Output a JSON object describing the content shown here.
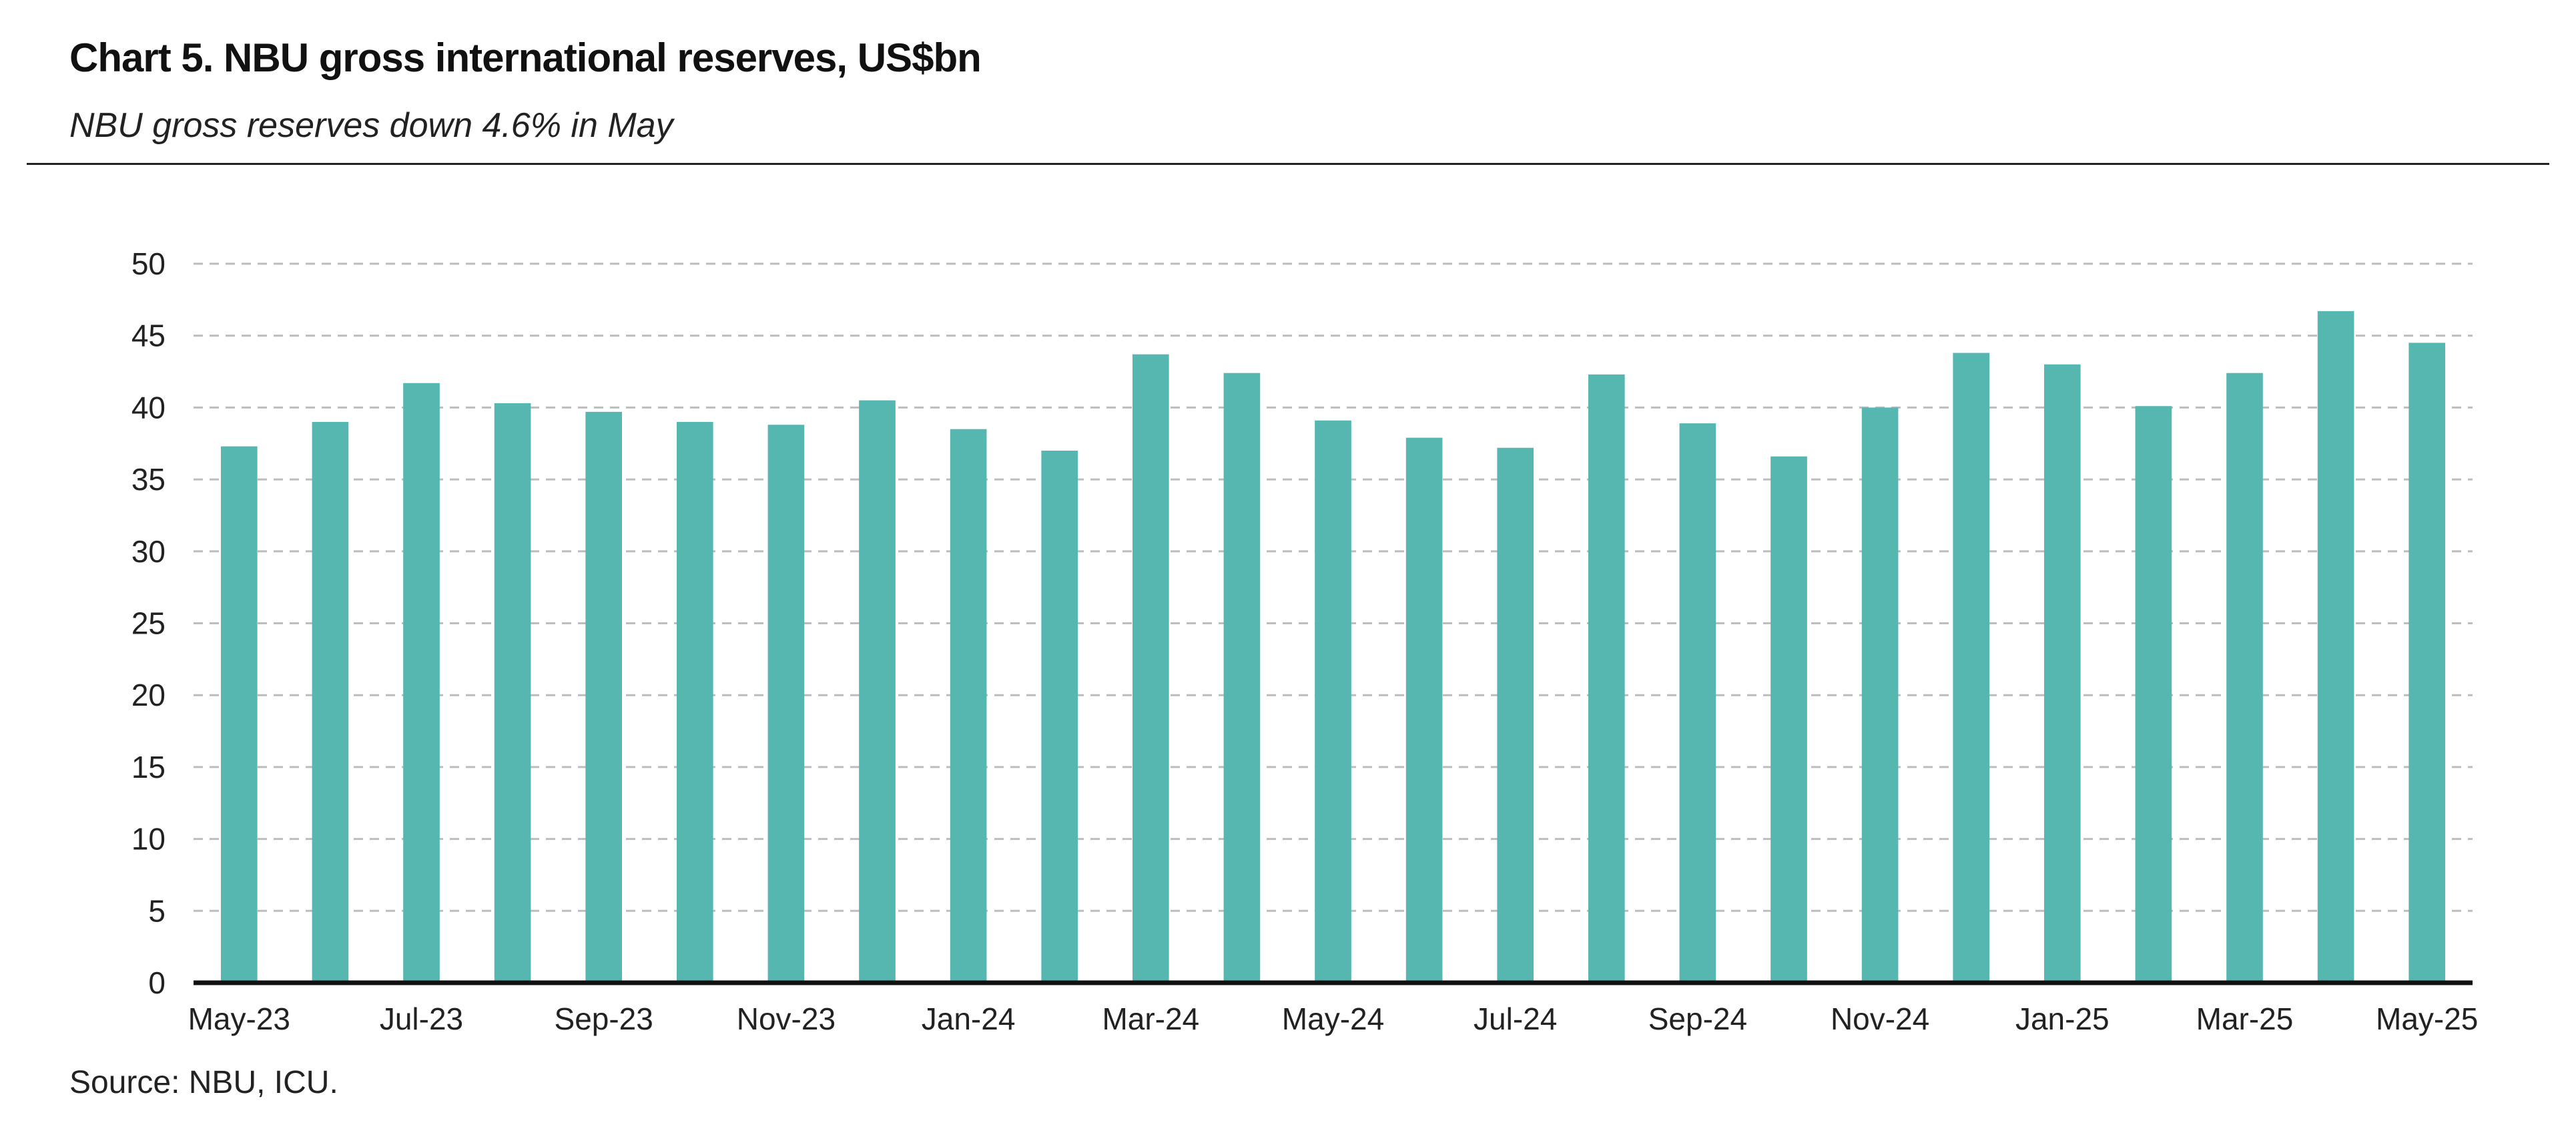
{
  "chart_data": {
    "type": "bar",
    "title": "Chart 5. NBU gross international reserves, US$bn",
    "subtitle": "NBU gross reserves down 4.6% in May",
    "source": "Source: NBU, ICU.",
    "xlabel": "",
    "ylabel": "",
    "ylim": [
      0,
      50
    ],
    "yticks": [
      0,
      5,
      10,
      15,
      20,
      25,
      30,
      35,
      40,
      45,
      50
    ],
    "grid": true,
    "legend": "none",
    "bar_color": "#56b6b0",
    "categories": [
      "May-23",
      "Jun-23",
      "Jul-23",
      "Aug-23",
      "Sep-23",
      "Oct-23",
      "Nov-23",
      "Dec-23",
      "Jan-24",
      "Feb-24",
      "Mar-24",
      "Apr-24",
      "May-24",
      "Jun-24",
      "Jul-24",
      "Aug-24",
      "Sep-24",
      "Oct-24",
      "Nov-24",
      "Dec-24",
      "Jan-25",
      "Feb-25",
      "Mar-25",
      "Apr-25",
      "May-25"
    ],
    "tick_labels": [
      "May-23",
      "",
      "Jul-23",
      "",
      "Sep-23",
      "",
      "Nov-23",
      "",
      "Jan-24",
      "",
      "Mar-24",
      "",
      "May-24",
      "",
      "Jul-24",
      "",
      "Sep-24",
      "",
      "Nov-24",
      "",
      "Jan-25",
      "",
      "Mar-25",
      "",
      "May-25"
    ],
    "values": [
      37.3,
      39.0,
      41.7,
      40.3,
      39.7,
      39.0,
      38.8,
      40.5,
      38.5,
      37.0,
      43.7,
      42.4,
      39.1,
      37.9,
      37.2,
      42.3,
      38.9,
      36.6,
      40.0,
      43.8,
      43.0,
      40.1,
      42.4,
      46.7,
      44.5
    ]
  }
}
